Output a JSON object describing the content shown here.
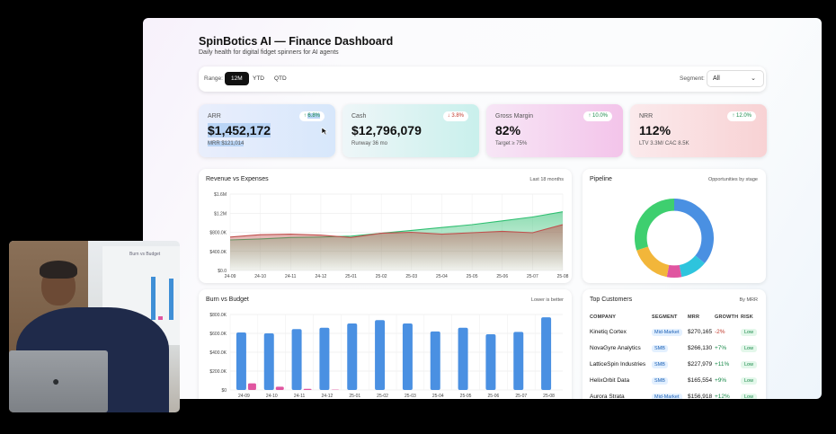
{
  "dashboard": {
    "title": "SpinBotics AI — Finance Dashboard",
    "subtitle": "Daily health for digital fidget spinners for AI agents"
  },
  "toolbar": {
    "range_label": "Range:",
    "range_options": [
      "12M",
      "YTD",
      "QTD"
    ],
    "range_selected": "12M",
    "segment_label": "Segment:",
    "segment_value": "All"
  },
  "kpis": [
    {
      "label": "ARR",
      "value": "$1,452,172",
      "sub": "MRR $121,014",
      "badge": "6.8%",
      "direction": "up"
    },
    {
      "label": "Cash",
      "value": "$12,796,079",
      "sub": "Runway 36 mo",
      "badge": "3.8%",
      "direction": "down"
    },
    {
      "label": "Gross Margin",
      "value": "82%",
      "sub": "Target ≥ 75%",
      "badge": "10.0%",
      "direction": "up"
    },
    {
      "label": "NRR",
      "value": "112%",
      "sub": "LTV 3.3M/ CAC 8.5K",
      "badge": "12.0%",
      "direction": "up"
    }
  ],
  "revenue_card": {
    "title": "Revenue vs Expenses",
    "note": "Last 18 months"
  },
  "pipeline_card": {
    "title": "Pipeline",
    "note": "Opportunities by stage"
  },
  "burn_card": {
    "title": "Burn vs Budget",
    "note": "Lower is better"
  },
  "customers_card": {
    "title": "Top Customers",
    "note": "By MRR",
    "headers": [
      "COMPANY",
      "SEGMENT",
      "MRR",
      "GROWTH",
      "RISK"
    ],
    "rows": [
      {
        "company": "Kinetiq Cortex",
        "segment": "Mid-Market",
        "mrr": "$270,165",
        "growth": "-2%",
        "risk": "Low"
      },
      {
        "company": "NovaGyre Analytics",
        "segment": "SMB",
        "mrr": "$266,130",
        "growth": "+7%",
        "risk": "Low"
      },
      {
        "company": "LatticeSpin Industries",
        "segment": "SMB",
        "mrr": "$227,979",
        "growth": "+11%",
        "risk": "Low"
      },
      {
        "company": "HelixOrbit Data",
        "segment": "SMB",
        "mrr": "$165,554",
        "growth": "+9%",
        "risk": "Low"
      },
      {
        "company": "Aurora Strata",
        "segment": "Mid-Market",
        "mrr": "$156,918",
        "growth": "+12%",
        "risk": "Low"
      }
    ]
  },
  "chart_data": [
    {
      "type": "area",
      "title": "Revenue vs Expenses",
      "x": [
        "24-09",
        "24-10",
        "24-11",
        "24-12",
        "25-01",
        "25-02",
        "25-03",
        "25-04",
        "25-05",
        "25-06",
        "25-07",
        "25-08"
      ],
      "yticks": [
        "$0.0",
        "$400.0K",
        "$800.0K",
        "$1.2M",
        "$1.6M"
      ],
      "ylim": [
        0,
        1600000
      ],
      "series": [
        {
          "name": "Revenue",
          "color": "#2fbf71",
          "values": [
            640000,
            660000,
            690000,
            700000,
            720000,
            780000,
            840000,
            900000,
            960000,
            1040000,
            1120000,
            1230000
          ]
        },
        {
          "name": "Expenses",
          "color": "#c0504d",
          "values": [
            700000,
            750000,
            760000,
            740000,
            690000,
            780000,
            800000,
            760000,
            790000,
            820000,
            790000,
            960000
          ]
        }
      ]
    },
    {
      "type": "pie",
      "title": "Pipeline",
      "slices": [
        {
          "value": 36,
          "color": "#4a90e2"
        },
        {
          "value": 11,
          "color": "#2ec4dd"
        },
        {
          "value": 6,
          "color": "#e055a0"
        },
        {
          "value": 17,
          "color": "#f2b63a"
        },
        {
          "value": 30,
          "color": "#3ecf6f"
        }
      ]
    },
    {
      "type": "bar",
      "title": "Burn vs Budget",
      "categories": [
        "24-09",
        "24-10",
        "24-11",
        "24-12",
        "25-01",
        "25-02",
        "25-03",
        "25-04",
        "25-05",
        "25-06",
        "25-07",
        "25-08"
      ],
      "yticks": [
        "$0",
        "$200.0K",
        "$400.0K",
        "$600.0K",
        "$800.0K"
      ],
      "ylim": [
        0,
        800000
      ],
      "series": [
        {
          "name": "Burn",
          "color": "#4a90e2",
          "values": [
            610000,
            600000,
            645000,
            660000,
            705000,
            740000,
            705000,
            620000,
            660000,
            590000,
            615000,
            770000
          ]
        },
        {
          "name": "Budget",
          "color": "#e055a0",
          "values": [
            70000,
            35000,
            12000,
            4000,
            0,
            0,
            0,
            0,
            0,
            0,
            0,
            0
          ]
        }
      ]
    }
  ],
  "webcam": {
    "screen_title": "Burn vs Budget"
  }
}
